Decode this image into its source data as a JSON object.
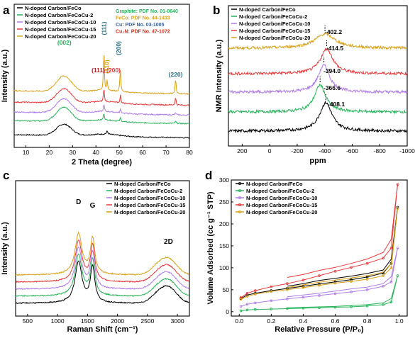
{
  "colors": {
    "black": "#000000",
    "green": "#27b35a",
    "purple": "#b07ae8",
    "red": "#e8383a",
    "orange": "#d8a21a",
    "teal": "#2a6f86",
    "darkred": "#b3262b",
    "cu": "#3a5fa0",
    "cu2o": "#cc3322"
  },
  "chart_data": [
    {
      "panel_label": "a",
      "type": "line",
      "xlabel": "2 Theta (degree)",
      "ylabel": "Intensity (a.u.)",
      "xlim": [
        5,
        80
      ],
      "xticks": [
        10,
        20,
        30,
        40,
        50,
        60,
        70,
        80
      ],
      "legend": "top-left",
      "series": [
        {
          "name": "N-doped Carbon/FeCo",
          "color": "black"
        },
        {
          "name": "N-doped Carbon/FeCoCu-2",
          "color": "green"
        },
        {
          "name": "N-doped Carbon/FeCoCu-10",
          "color": "purple"
        },
        {
          "name": "N-doped Carbon/FeCoCu-15",
          "color": "red"
        },
        {
          "name": "N-doped Carbon/FeCoCu-20",
          "color": "orange"
        }
      ],
      "references": [
        {
          "text": "Graphite: PDF No. 01-0640",
          "color": "green"
        },
        {
          "text": "FeCo: PDF No. 44-1433",
          "color": "orange"
        },
        {
          "text": "Cu: PDF No. 03-1005",
          "color": "cu"
        },
        {
          "text": "Cu₂N: PDF No. 47-1072",
          "color": "cu2o"
        }
      ],
      "peak_labels": [
        {
          "text": "(002)",
          "x": 26.5,
          "color": "green"
        },
        {
          "text": "(111)",
          "x": 43.3,
          "color": "darkred"
        },
        {
          "text": "(110)",
          "x": 44.8,
          "color": "orange"
        },
        {
          "text": "(111)",
          "x": 43.5,
          "color": "teal"
        },
        {
          "text": "(200)",
          "x": 47.0,
          "color": "red"
        },
        {
          "text": "(200)",
          "x": 50.4,
          "color": "teal"
        },
        {
          "text": "(220)",
          "x": 74.1,
          "color": "teal"
        }
      ]
    },
    {
      "panel_label": "b",
      "type": "line",
      "xlabel": "ppm",
      "ylabel": "NMR Intensity (a.u.)",
      "xlim": [
        300,
        -1000
      ],
      "xticks": [
        200,
        0,
        -200,
        -400,
        -600,
        -800,
        -1000
      ],
      "legend": "top-left",
      "series": [
        {
          "name": "N-doped Carbon/FeCo",
          "color": "black",
          "peak": -408.1
        },
        {
          "name": "N-doped Carbon/FeCoCu-2",
          "color": "green",
          "peak": -366.6
        },
        {
          "name": "N-doped Carbon/FeCoCu-10",
          "color": "purple",
          "peak": -394.0
        },
        {
          "name": "N-doped Carbon/FeCoCu-15",
          "color": "red",
          "peak": -414.5
        },
        {
          "name": "N-doped Carbon/FeCoCu-20",
          "color": "orange",
          "peak": -402.2
        }
      ],
      "peak_labels": [
        "-402.2",
        "-414.5",
        "-394.0",
        "-366.6",
        "-408.1"
      ]
    },
    {
      "panel_label": "c",
      "type": "line",
      "xlabel": "Raman Shift (cm⁻¹)",
      "ylabel": "Intensity (a.u.)",
      "xlim": [
        300,
        3200
      ],
      "xticks": [
        500,
        1000,
        1500,
        2000,
        2500,
        3000
      ],
      "legend": "top-right",
      "band_labels": [
        {
          "text": "D",
          "x": 1350
        },
        {
          "text": "G",
          "x": 1585
        },
        {
          "text": "2D",
          "x": 2850
        }
      ],
      "series": [
        {
          "name": "N-doped Carbon/FeCo",
          "color": "black"
        },
        {
          "name": "N-doped Carbon/FeCoCu-2",
          "color": "green"
        },
        {
          "name": "N-doped Carbon/FeCoCu-10",
          "color": "purple"
        },
        {
          "name": "N-doped Carbon/FeCoCu-15",
          "color": "red"
        },
        {
          "name": "N-doped Carbon/FeCoCu-20",
          "color": "orange"
        }
      ]
    },
    {
      "panel_label": "d",
      "type": "line",
      "xlabel": "Relative Pressure (P/P₀)",
      "ylabel": "Volume Adsorbed (cc g⁻¹ STP)",
      "xlim": [
        -0.05,
        1.05
      ],
      "ylim": [
        -10,
        300
      ],
      "xticks": [
        0.0,
        0.2,
        0.4,
        0.6,
        0.8,
        1.0
      ],
      "yticks": [
        0,
        50,
        100,
        150,
        200,
        250,
        300
      ],
      "legend": "top-left",
      "series": [
        {
          "name": "N-doped Carbon/FeCo",
          "color": "black",
          "x": [
            0.01,
            0.05,
            0.1,
            0.2,
            0.3,
            0.4,
            0.5,
            0.6,
            0.7,
            0.8,
            0.9,
            0.95,
            0.99
          ],
          "adsorption": [
            30,
            38,
            42,
            48,
            53,
            58,
            63,
            68,
            73,
            79,
            88,
            110,
            238
          ],
          "desorption": [
            238,
            120,
            95,
            87,
            81,
            76,
            71,
            64,
            58
          ]
        },
        {
          "name": "N-doped Carbon/FeCoCu-2",
          "color": "green",
          "x": [
            0.01,
            0.05,
            0.1,
            0.2,
            0.3,
            0.4,
            0.5,
            0.6,
            0.7,
            0.8,
            0.9,
            0.95,
            0.99
          ],
          "adsorption": [
            2,
            4,
            5,
            6,
            7,
            8,
            9,
            10,
            11,
            13,
            16,
            22,
            82
          ],
          "desorption": [
            82,
            30,
            20,
            16,
            14,
            12,
            11,
            10,
            9
          ]
        },
        {
          "name": "N-doped Carbon/FeCoCu-10",
          "color": "purple",
          "x": [
            0.01,
            0.05,
            0.1,
            0.2,
            0.3,
            0.4,
            0.5,
            0.6,
            0.7,
            0.8,
            0.9,
            0.95,
            0.99
          ],
          "adsorption": [
            12,
            17,
            20,
            25,
            29,
            33,
            37,
            41,
            45,
            50,
            58,
            68,
            145
          ],
          "desorption": [
            145,
            80,
            64,
            56,
            52,
            47,
            42,
            38,
            34
          ]
        },
        {
          "name": "N-doped Carbon/FeCoCu-15",
          "color": "red",
          "x": [
            0.01,
            0.05,
            0.1,
            0.2,
            0.3,
            0.4,
            0.5,
            0.6,
            0.7,
            0.8,
            0.9,
            0.95,
            0.99
          ],
          "adsorption": [
            32,
            42,
            48,
            57,
            64,
            72,
            82,
            92,
            101,
            110,
            122,
            145,
            290
          ],
          "desorption": [
            290,
            165,
            135,
            120,
            110,
            101,
            94,
            85,
            78
          ]
        },
        {
          "name": "N-doped Carbon/FeCoCu-20",
          "color": "orange",
          "x": [
            0.01,
            0.05,
            0.1,
            0.2,
            0.3,
            0.4,
            0.5,
            0.6,
            0.7,
            0.8,
            0.9,
            0.95,
            0.99
          ],
          "adsorption": [
            28,
            35,
            40,
            46,
            50,
            55,
            60,
            65,
            69,
            74,
            82,
            100,
            235
          ],
          "desorption": [
            235,
            110,
            90,
            82,
            77,
            72,
            67,
            61,
            55
          ]
        }
      ]
    }
  ]
}
